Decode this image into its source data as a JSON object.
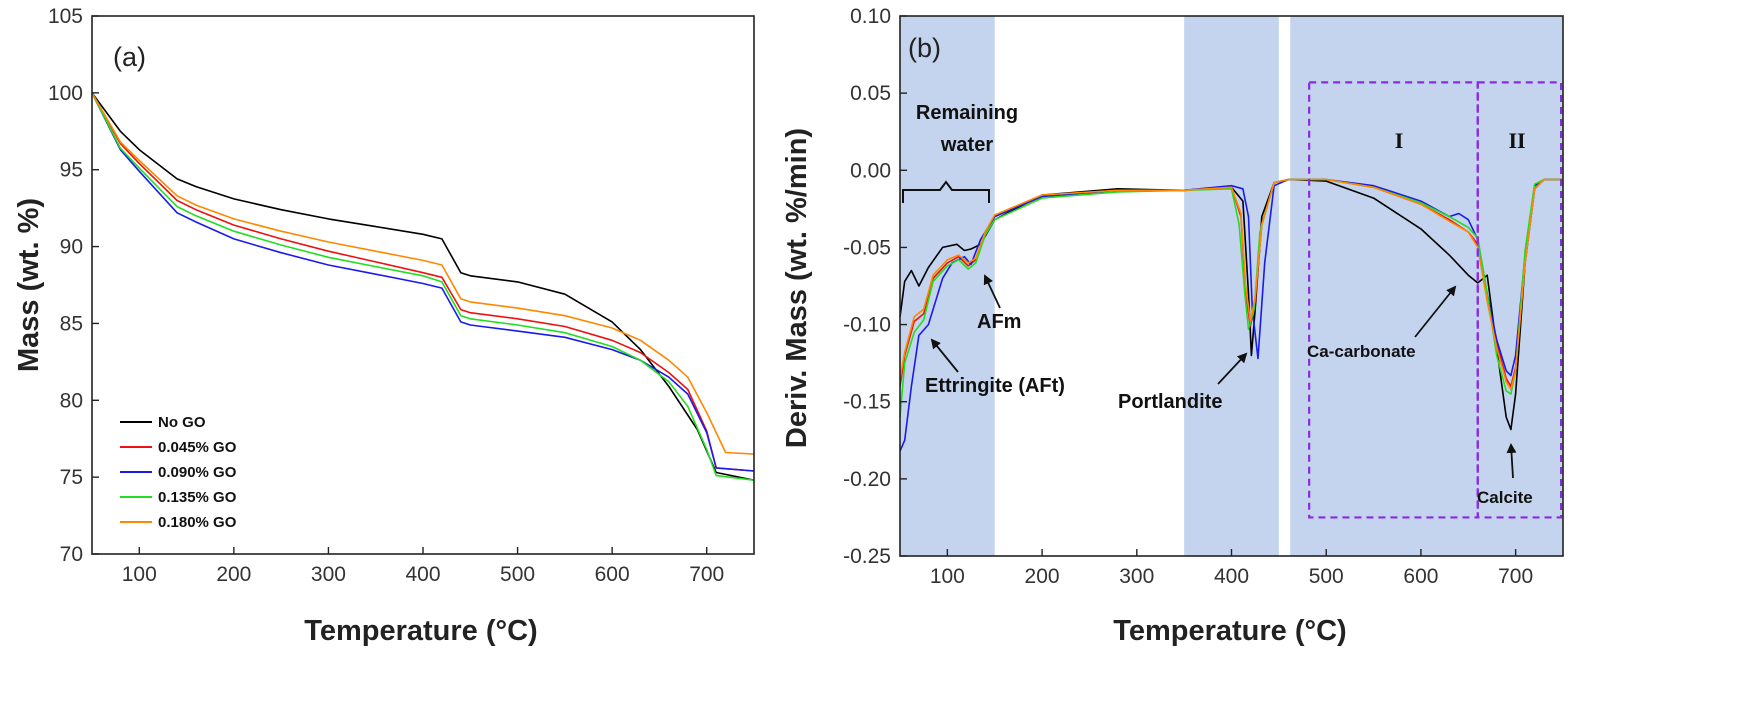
{
  "panels": [
    {
      "id": "a",
      "panel_label": "(a)",
      "xlabel": "Temperature (°C)",
      "ylabel": "Mass (wt. %)"
    },
    {
      "id": "b",
      "panel_label": "(b)",
      "xlabel": "Temperature (°C)",
      "ylabel": "Deriv. Mass (wt. %/min)",
      "annotations": {
        "remaining_water_line1": "Remaining",
        "remaining_water_line2": "water",
        "afm": "AFm",
        "ettringite": "Ettringite (AFt)",
        "portlandite": "Portlandite",
        "ca_carbonate": "Ca-carbonate",
        "calcite": "Calcite",
        "region_1": "I",
        "region_2": "II"
      }
    }
  ],
  "colors": {
    "no_go": "#000000",
    "go_0045": "#ee1111",
    "go_0090": "#1a1aee",
    "go_0135": "#22dd22",
    "go_0180": "#ff8800",
    "shade": "#c4d4ee",
    "dashed_box": "#8a2be2"
  },
  "chart_data": [
    {
      "type": "line",
      "title": "",
      "xlabel": "Temperature (°C)",
      "ylabel": "Mass (wt. %)",
      "xlim": [
        50,
        750
      ],
      "ylim": [
        70,
        105
      ],
      "xticks": [
        100,
        200,
        300,
        400,
        500,
        600,
        700
      ],
      "yticks": [
        70,
        75,
        80,
        85,
        90,
        95,
        100,
        105
      ],
      "legend_position": "bottom-left",
      "series": [
        {
          "name": "No GO",
          "color": "#000000",
          "x": [
            50,
            80,
            100,
            140,
            160,
            200,
            250,
            300,
            350,
            400,
            420,
            440,
            450,
            500,
            550,
            600,
            630,
            660,
            690,
            710,
            750
          ],
          "y": [
            100,
            97.5,
            96.3,
            94.4,
            93.9,
            93.1,
            92.4,
            91.8,
            91.3,
            90.8,
            90.5,
            88.3,
            88.1,
            87.7,
            86.9,
            85.1,
            83.3,
            80.9,
            78.1,
            75.3,
            74.8
          ]
        },
        {
          "name": "0.045% GO",
          "color": "#ee1111",
          "x": [
            50,
            80,
            100,
            140,
            160,
            200,
            250,
            300,
            350,
            400,
            420,
            440,
            450,
            500,
            550,
            600,
            630,
            660,
            680,
            700,
            710,
            750
          ],
          "y": [
            100,
            96.7,
            95.4,
            93.0,
            92.4,
            91.4,
            90.5,
            89.7,
            89.0,
            88.3,
            88.0,
            85.9,
            85.7,
            85.3,
            84.8,
            83.9,
            83.1,
            81.8,
            80.7,
            78.0,
            75.6,
            75.4
          ]
        },
        {
          "name": "0.090% GO",
          "color": "#1a1aee",
          "x": [
            50,
            80,
            100,
            140,
            160,
            200,
            250,
            300,
            350,
            400,
            420,
            440,
            450,
            500,
            550,
            600,
            630,
            660,
            680,
            700,
            710,
            750
          ],
          "y": [
            100,
            96.3,
            94.9,
            92.2,
            91.6,
            90.5,
            89.6,
            88.8,
            88.2,
            87.6,
            87.3,
            85.1,
            84.9,
            84.5,
            84.1,
            83.3,
            82.6,
            81.5,
            80.4,
            77.9,
            75.6,
            75.4
          ]
        },
        {
          "name": "0.135% GO",
          "color": "#22dd22",
          "x": [
            50,
            80,
            100,
            140,
            160,
            200,
            250,
            300,
            350,
            400,
            420,
            440,
            450,
            500,
            550,
            600,
            630,
            660,
            680,
            700,
            710,
            750
          ],
          "y": [
            100,
            96.4,
            95.1,
            92.6,
            92.0,
            91.0,
            90.1,
            89.3,
            88.7,
            88.1,
            87.7,
            85.5,
            85.3,
            84.9,
            84.4,
            83.5,
            82.6,
            81.2,
            79.6,
            76.8,
            75.1,
            74.8
          ]
        },
        {
          "name": "0.180% GO",
          "color": "#ff8800",
          "x": [
            50,
            80,
            100,
            140,
            160,
            200,
            250,
            300,
            350,
            400,
            420,
            440,
            450,
            500,
            550,
            600,
            630,
            660,
            680,
            700,
            720,
            750
          ],
          "y": [
            100,
            96.8,
            95.6,
            93.3,
            92.7,
            91.8,
            91.0,
            90.3,
            89.7,
            89.1,
            88.8,
            86.6,
            86.4,
            86.0,
            85.5,
            84.7,
            83.9,
            82.6,
            81.5,
            79.2,
            76.6,
            76.5
          ]
        }
      ]
    },
    {
      "type": "line",
      "title": "",
      "xlabel": "Temperature (°C)",
      "ylabel": "Deriv. Mass (wt. %/min)",
      "xlim": [
        50,
        750
      ],
      "ylim": [
        -0.25,
        0.1
      ],
      "xticks": [
        100,
        200,
        300,
        400,
        500,
        600,
        700
      ],
      "yticks": [
        -0.25,
        -0.2,
        -0.15,
        -0.1,
        -0.05,
        0.0,
        0.05,
        0.1
      ],
      "ytick_labels": [
        "-0.25",
        "-0.20",
        "-0.15",
        "-0.10",
        "-0.05",
        "0.00",
        "0.05",
        "0.10"
      ],
      "shaded_regions": [
        [
          50,
          150
        ],
        [
          350,
          450
        ],
        [
          462,
          750
        ]
      ],
      "dashed_boxes": [
        [
          482,
          660,
          -0.225,
          0.057
        ],
        [
          660,
          748,
          -0.225,
          0.057
        ]
      ],
      "series": [
        {
          "name": "No GO",
          "color": "#000000",
          "x": [
            50,
            55,
            62,
            70,
            80,
            95,
            110,
            118,
            125,
            135,
            150,
            200,
            280,
            350,
            400,
            412,
            418,
            421,
            425,
            432,
            445,
            460,
            500,
            550,
            600,
            630,
            650,
            660,
            670,
            680,
            690,
            695,
            700,
            710,
            720,
            730,
            750
          ],
          "y": [
            -0.095,
            -0.072,
            -0.065,
            -0.075,
            -0.063,
            -0.05,
            -0.048,
            -0.052,
            -0.051,
            -0.048,
            -0.032,
            -0.016,
            -0.012,
            -0.013,
            -0.011,
            -0.02,
            -0.08,
            -0.12,
            -0.09,
            -0.03,
            -0.008,
            -0.006,
            -0.007,
            -0.018,
            -0.038,
            -0.055,
            -0.068,
            -0.073,
            -0.068,
            -0.115,
            -0.16,
            -0.168,
            -0.145,
            -0.06,
            -0.012,
            -0.006,
            -0.006
          ]
        },
        {
          "name": "0.045% GO",
          "color": "#ee1111",
          "x": [
            50,
            55,
            65,
            75,
            85,
            100,
            112,
            122,
            130,
            140,
            150,
            200,
            280,
            350,
            400,
            410,
            415,
            420,
            425,
            432,
            445,
            460,
            500,
            550,
            600,
            630,
            650,
            660,
            670,
            680,
            690,
            695,
            700,
            710,
            720,
            730,
            750
          ],
          "y": [
            -0.14,
            -0.12,
            -0.098,
            -0.093,
            -0.07,
            -0.06,
            -0.056,
            -0.062,
            -0.058,
            -0.04,
            -0.03,
            -0.017,
            -0.013,
            -0.013,
            -0.011,
            -0.03,
            -0.08,
            -0.101,
            -0.085,
            -0.035,
            -0.008,
            -0.006,
            -0.006,
            -0.011,
            -0.022,
            -0.032,
            -0.04,
            -0.048,
            -0.08,
            -0.112,
            -0.135,
            -0.14,
            -0.128,
            -0.058,
            -0.01,
            -0.006,
            -0.006
          ]
        },
        {
          "name": "0.090% GO",
          "color": "#1a1aee",
          "x": [
            50,
            55,
            62,
            70,
            80,
            95,
            105,
            118,
            125,
            135,
            150,
            200,
            280,
            350,
            400,
            412,
            418,
            422,
            428,
            435,
            445,
            460,
            500,
            550,
            600,
            630,
            640,
            650,
            660,
            670,
            680,
            690,
            695,
            700,
            710,
            720,
            730,
            750
          ],
          "y": [
            -0.182,
            -0.175,
            -0.14,
            -0.107,
            -0.1,
            -0.07,
            -0.06,
            -0.056,
            -0.061,
            -0.045,
            -0.03,
            -0.017,
            -0.013,
            -0.013,
            -0.01,
            -0.012,
            -0.03,
            -0.09,
            -0.122,
            -0.06,
            -0.01,
            -0.006,
            -0.006,
            -0.01,
            -0.02,
            -0.03,
            -0.028,
            -0.032,
            -0.045,
            -0.08,
            -0.11,
            -0.13,
            -0.133,
            -0.12,
            -0.055,
            -0.01,
            -0.006,
            -0.006
          ]
        },
        {
          "name": "0.135% GO",
          "color": "#22dd22",
          "x": [
            50,
            55,
            65,
            75,
            85,
            100,
            112,
            122,
            130,
            140,
            150,
            200,
            280,
            350,
            400,
            408,
            414,
            418,
            424,
            430,
            445,
            460,
            500,
            550,
            600,
            630,
            650,
            660,
            670,
            680,
            690,
            695,
            700,
            710,
            720,
            730,
            750
          ],
          "y": [
            -0.16,
            -0.125,
            -0.105,
            -0.097,
            -0.072,
            -0.062,
            -0.058,
            -0.064,
            -0.06,
            -0.042,
            -0.032,
            -0.018,
            -0.014,
            -0.013,
            -0.012,
            -0.035,
            -0.08,
            -0.103,
            -0.09,
            -0.04,
            -0.008,
            -0.006,
            -0.006,
            -0.011,
            -0.021,
            -0.03,
            -0.037,
            -0.044,
            -0.08,
            -0.12,
            -0.143,
            -0.145,
            -0.13,
            -0.052,
            -0.009,
            -0.006,
            -0.006
          ]
        },
        {
          "name": "0.180% GO",
          "color": "#ff8800",
          "x": [
            50,
            55,
            65,
            75,
            85,
            100,
            112,
            122,
            130,
            140,
            150,
            200,
            280,
            350,
            400,
            410,
            415,
            420,
            425,
            432,
            445,
            460,
            500,
            550,
            600,
            630,
            650,
            660,
            670,
            680,
            690,
            695,
            700,
            710,
            720,
            730,
            750
          ],
          "y": [
            -0.135,
            -0.118,
            -0.095,
            -0.09,
            -0.068,
            -0.058,
            -0.055,
            -0.06,
            -0.057,
            -0.04,
            -0.029,
            -0.016,
            -0.013,
            -0.013,
            -0.011,
            -0.028,
            -0.075,
            -0.098,
            -0.082,
            -0.035,
            -0.008,
            -0.006,
            -0.006,
            -0.011,
            -0.022,
            -0.033,
            -0.04,
            -0.05,
            -0.085,
            -0.115,
            -0.137,
            -0.142,
            -0.13,
            -0.06,
            -0.012,
            -0.006,
            -0.006
          ]
        }
      ]
    }
  ]
}
